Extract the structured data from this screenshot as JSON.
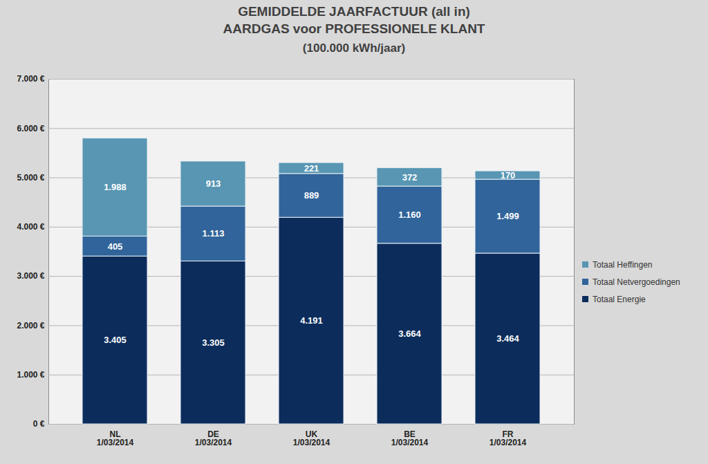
{
  "chart_data": {
    "type": "bar",
    "title": "GEMIDDELDE JAARFACTUUR (all in)\nAARDGAS voor PROFESSIONELE KLANT",
    "subtitle": "(100.000 kWh/jaar)",
    "categories": [
      "NL\n1/03/2014",
      "DE\n1/03/2014",
      "UK\n1/03/2014",
      "BE\n1/03/2014",
      "FR\n1/03/2014"
    ],
    "series": [
      {
        "name": "Totaal Energie",
        "color": "#0c2d5c",
        "values": [
          3405,
          3305,
          4191,
          3664,
          3464
        ],
        "value_labels": [
          "3.405",
          "3.305",
          "4.191",
          "3.664",
          "3.464"
        ]
      },
      {
        "name": "Totaal Netvergoedingen",
        "color": "#31649a",
        "values": [
          405,
          1113,
          889,
          1160,
          1499
        ],
        "value_labels": [
          "405",
          "1.113",
          "889",
          "1.160",
          "1.499"
        ]
      },
      {
        "name": "Totaal Heffingen",
        "color": "#5896b3",
        "values": [
          1988,
          913,
          221,
          372,
          170
        ],
        "value_labels": [
          "1.988",
          "913",
          "221",
          "372",
          "170"
        ]
      }
    ],
    "ylim": [
      0,
      7000
    ],
    "yticks": [
      {
        "value": 0,
        "label": "0 €"
      },
      {
        "value": 1000,
        "label": "1.000 €"
      },
      {
        "value": 2000,
        "label": "2.000 €"
      },
      {
        "value": 3000,
        "label": "3.000 €"
      },
      {
        "value": 4000,
        "label": "4.000 €"
      },
      {
        "value": 5000,
        "label": "5.000 €"
      },
      {
        "value": 6000,
        "label": "6.000 €"
      },
      {
        "value": 7000,
        "label": "7.000 €"
      }
    ],
    "stacked": true,
    "data_labels": true,
    "grid": true,
    "legend": "right"
  }
}
